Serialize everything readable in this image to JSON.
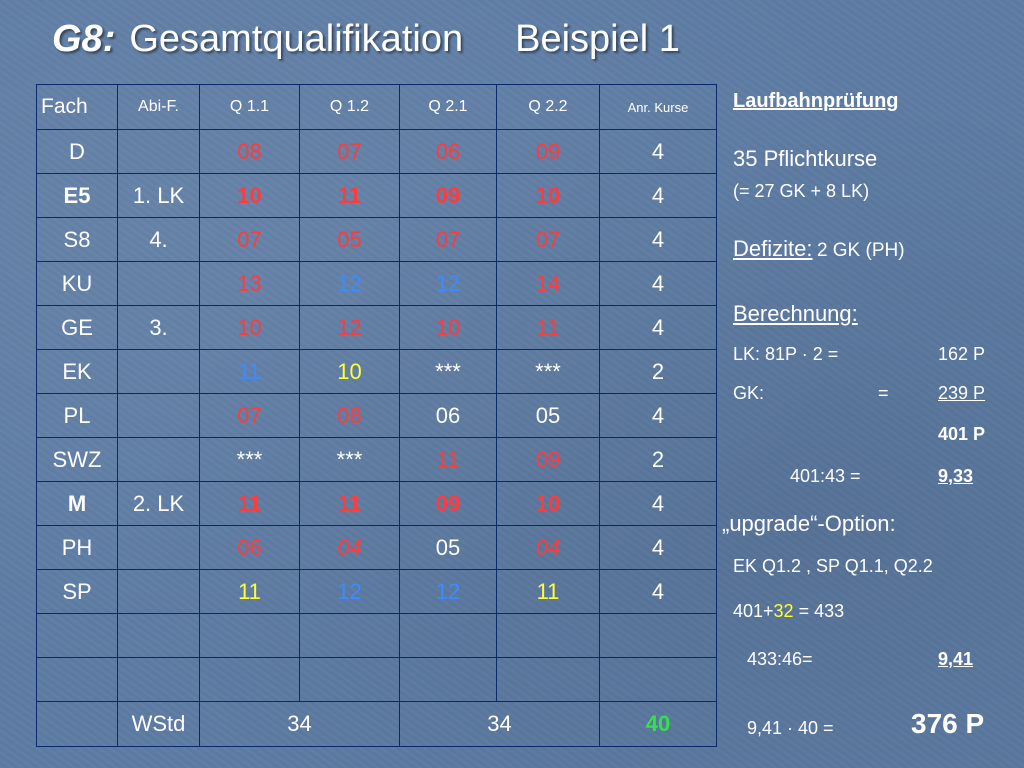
{
  "title": {
    "part1": "G8:",
    "part2": "Gesamtqualifikation",
    "part3": "Beispiel 1"
  },
  "table": {
    "headers": [
      "Fach",
      "Abi-F.",
      "Q 1.1",
      "Q 1.2",
      "Q 2.1",
      "Q 2.2",
      "Anr. Kurse"
    ],
    "rows": [
      {
        "fach": "D",
        "abi": "",
        "q11": "08",
        "q12": "07",
        "q21": "06",
        "q22": "09",
        "anr": "4"
      },
      {
        "fach": "E5",
        "abi": "1. LK",
        "q11": "10",
        "q12": "11",
        "q21": "09",
        "q22": "10",
        "anr": "4"
      },
      {
        "fach": "S8",
        "abi": "4.",
        "q11": "07",
        "q12": "05",
        "q21": "07",
        "q22": "07",
        "anr": "4"
      },
      {
        "fach": "KU",
        "abi": "",
        "q11": "13",
        "q12": "12",
        "q21": "12",
        "q22": "14",
        "anr": "4"
      },
      {
        "fach": "GE",
        "abi": "3.",
        "q11": "10",
        "q12": "12",
        "q21": "10",
        "q22": "11",
        "anr": "4"
      },
      {
        "fach": "EK",
        "abi": "",
        "q11": "11",
        "q12": "10",
        "q21": "***",
        "q22": "***",
        "anr": "2"
      },
      {
        "fach": "PL",
        "abi": "",
        "q11": "07",
        "q12": "08",
        "q21": "06",
        "q22": "05",
        "anr": "4"
      },
      {
        "fach": "SWZ",
        "abi": "",
        "q11": "***",
        "q12": "***",
        "q21": "11",
        "q22": "09",
        "anr": "2"
      },
      {
        "fach": "M",
        "abi": "2. LK",
        "q11": "11",
        "q12": "11",
        "q21": "09",
        "q22": "10",
        "anr": "4"
      },
      {
        "fach": "PH",
        "abi": "",
        "q11": "06",
        "q12": "04",
        "q21": "05",
        "q22": "04",
        "anr": "4"
      },
      {
        "fach": "SP",
        "abi": "",
        "q11": "11",
        "q12": "12",
        "q21": "12",
        "q22": "11",
        "anr": "4"
      },
      {
        "fach": "",
        "abi": "",
        "q11": "",
        "q12": "",
        "q21": "",
        "q22": "",
        "anr": ""
      },
      {
        "fach": "",
        "abi": "",
        "q11": "",
        "q12": "",
        "q21": "",
        "q22": "",
        "anr": ""
      }
    ],
    "footer": {
      "label": "WStd",
      "q1": "34",
      "q2": "34",
      "total": "40"
    }
  },
  "sidebar": {
    "laufbahn": "Laufbahnprüfung",
    "pflicht": "35 Pflichtkurse",
    "pflicht_sub": "(= 27 GK + 8 LK)",
    "defizite_label": "Defizite:",
    "defizite_value": "2 GK (PH)",
    "berechnung": "Berechnung:",
    "lk_left": "LK:  81P · 2 =",
    "lk_right": "162 P",
    "gk_left": "GK:",
    "gk_eq": "=",
    "gk_right": "239 P",
    "sum": "401 P",
    "div_left": "401:43 =",
    "div_right": "9,33",
    "upgrade": "„upgrade“-Option:",
    "upgrade_detail": "EK Q1.2 , SP Q1.1, Q2.2",
    "plus_a": "401+",
    "plus_b": "32",
    "plus_c": " = 433",
    "div2_left": "433:46=",
    "div2_right": "9,41",
    "final_left": "9,41 · 40   =",
    "final_right": "376 P"
  }
}
